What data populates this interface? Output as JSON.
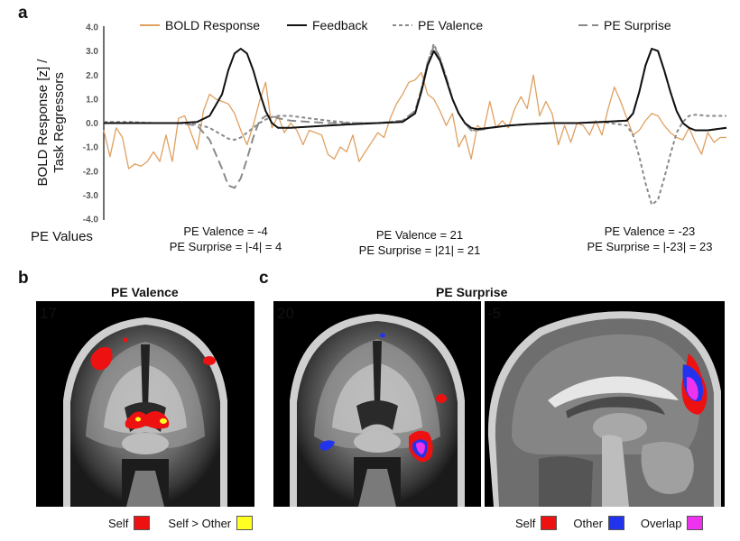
{
  "panel_a": {
    "letter": "a",
    "ylabel_line1": "BOLD Response [z] /",
    "ylabel_line2": "Task Regressors",
    "pe_values_label": "PE Values",
    "annotations": [
      {
        "line1": "PE Valence = -4",
        "line2": "PE Surprise = |-4| = 4"
      },
      {
        "line1": "PE Valence = 21",
        "line2": "PE Surprise = |21| = 21"
      },
      {
        "line1": "PE Valence = -23",
        "line2": "PE Surprise = |-23| = 23"
      }
    ]
  },
  "chart_data": {
    "type": "line",
    "title": "",
    "xlabel": "",
    "ylabel": "BOLD Response [z] / Task Regressors",
    "ylim": [
      -4.0,
      4.0
    ],
    "yticks": [
      "4.0",
      "3.0",
      "2.0",
      "1.0",
      "0.0",
      "-1.0",
      "-2.0",
      "-3.0",
      "-4.0"
    ],
    "grid": false,
    "legend_position": "top",
    "xlim": [
      0,
      100
    ],
    "series": [
      {
        "name": "BOLD Response",
        "color": "#e0a060",
        "style": "solid",
        "x": [
          0,
          1,
          2,
          3,
          4,
          5,
          6,
          7,
          8,
          9,
          10,
          11,
          12,
          13,
          14,
          15,
          16,
          17,
          18,
          19,
          20,
          21,
          22,
          23,
          24,
          25,
          26,
          27,
          28,
          29,
          30,
          31,
          32,
          33,
          34,
          35,
          36,
          37,
          38,
          39,
          40,
          41,
          42,
          43,
          44,
          45,
          46,
          47,
          48,
          49,
          50,
          51,
          52,
          53,
          54,
          55,
          56,
          57,
          58,
          59,
          60,
          61,
          62,
          63,
          64,
          65,
          66,
          67,
          68,
          69,
          70,
          71,
          72,
          73,
          74,
          75,
          76,
          77,
          78,
          79,
          80,
          81,
          82,
          83,
          84,
          85,
          86,
          87,
          88,
          89,
          90,
          91,
          92,
          93,
          94,
          95,
          96,
          97,
          98,
          99,
          100
        ],
        "y": [
          -0.3,
          -1.4,
          -0.2,
          -0.6,
          -1.9,
          -1.7,
          -1.8,
          -1.6,
          -1.2,
          -1.6,
          -0.5,
          -1.6,
          0.2,
          0.3,
          -0.4,
          -1.1,
          0.5,
          1.2,
          1.0,
          0.9,
          0.8,
          0.4,
          -0.3,
          -0.9,
          -0.1,
          0.9,
          1.7,
          -0.2,
          0.3,
          -0.4,
          0.0,
          -0.3,
          -0.9,
          -0.3,
          -0.4,
          -0.5,
          -1.3,
          -1.5,
          -1.0,
          -1.2,
          -0.5,
          -1.6,
          -1.2,
          -0.8,
          -0.4,
          -0.6,
          0.2,
          0.8,
          1.2,
          1.7,
          1.8,
          2.1,
          1.2,
          1.0,
          0.5,
          -0.1,
          0.4,
          -1.0,
          -0.5,
          -1.5,
          -0.1,
          -0.3,
          0.9,
          -0.2,
          0.1,
          -0.2,
          0.6,
          1.1,
          0.6,
          2.0,
          0.3,
          0.9,
          0.4,
          -0.9,
          -0.1,
          -0.8,
          0.0,
          -0.1,
          -0.5,
          0.1,
          -0.5,
          0.6,
          1.5,
          0.9,
          0.2,
          -0.5,
          -0.3,
          0.1,
          0.4,
          0.3,
          -0.1,
          -0.4,
          -0.6,
          -0.7,
          -0.2,
          -0.8,
          -1.3,
          -0.4,
          -0.8,
          -0.6,
          -0.6
        ]
      },
      {
        "name": "Feedback",
        "color": "#111111",
        "style": "solid",
        "x": [
          0,
          4,
          8,
          12,
          15,
          17,
          19,
          20,
          21,
          22,
          23,
          24,
          25,
          26,
          27,
          28,
          30,
          33,
          36,
          40,
          44,
          48,
          50,
          51,
          52,
          53,
          54,
          55,
          56,
          57,
          58,
          59,
          60,
          62,
          65,
          68,
          72,
          76,
          80,
          84,
          85,
          86,
          87,
          88,
          89,
          90,
          91,
          92,
          93,
          94,
          95,
          97,
          100
        ],
        "y": [
          0.0,
          0.0,
          0.0,
          0.0,
          0.05,
          0.3,
          1.2,
          2.2,
          2.9,
          3.1,
          2.9,
          2.2,
          1.3,
          0.5,
          0.0,
          -0.2,
          -0.2,
          -0.15,
          -0.1,
          -0.05,
          0.0,
          0.05,
          0.4,
          1.3,
          2.4,
          3.0,
          2.6,
          1.8,
          1.0,
          0.4,
          0.0,
          -0.2,
          -0.25,
          -0.2,
          -0.1,
          -0.05,
          0.0,
          0.0,
          0.05,
          0.1,
          0.4,
          1.3,
          2.4,
          3.1,
          3.0,
          2.2,
          1.3,
          0.5,
          0.0,
          -0.2,
          -0.3,
          -0.3,
          -0.2
        ]
      },
      {
        "name": "PE Valence",
        "color": "#8a8a8a",
        "style": "short-dash",
        "x": [
          0,
          4,
          8,
          12,
          15,
          17,
          19,
          20,
          21,
          22,
          23,
          24,
          25,
          26,
          27,
          28,
          30,
          33,
          36,
          40,
          44,
          48,
          50,
          51,
          52,
          53,
          54,
          55,
          56,
          57,
          58,
          59,
          60,
          62,
          65,
          68,
          72,
          76,
          80,
          84,
          85,
          86,
          87,
          88,
          89,
          90,
          91,
          92,
          93,
          94,
          95,
          97,
          100
        ],
        "y": [
          0.05,
          0.05,
          0.0,
          0.0,
          -0.05,
          -0.2,
          -0.5,
          -0.65,
          -0.7,
          -0.6,
          -0.4,
          -0.2,
          0.0,
          0.15,
          0.25,
          0.3,
          0.3,
          0.2,
          0.1,
          0.0,
          0.0,
          0.1,
          0.5,
          1.4,
          2.5,
          3.3,
          2.7,
          1.9,
          1.0,
          0.4,
          0.0,
          -0.3,
          -0.3,
          -0.2,
          -0.1,
          -0.05,
          0.0,
          0.0,
          0.05,
          -0.1,
          -0.5,
          -1.4,
          -2.5,
          -3.4,
          -3.2,
          -2.3,
          -1.3,
          -0.4,
          0.05,
          0.3,
          0.35,
          0.3,
          0.3
        ]
      },
      {
        "name": "PE Surprise",
        "color": "#8a8a8a",
        "style": "long-dash",
        "x": [
          0,
          4,
          8,
          12,
          15,
          17,
          19,
          20,
          21,
          22,
          23,
          24,
          25,
          26,
          27,
          28,
          30,
          33,
          36,
          40,
          44,
          48,
          50,
          51,
          52,
          53,
          54,
          55,
          56,
          57,
          58,
          59,
          60,
          62,
          65,
          68,
          72,
          76,
          80,
          84,
          85,
          86,
          87,
          88,
          89,
          90,
          91,
          92,
          93,
          94,
          95,
          97,
          100
        ],
        "y": [
          0.0,
          0.0,
          0.0,
          0.0,
          -0.1,
          -0.7,
          -1.9,
          -2.6,
          -2.7,
          -2.3,
          -1.5,
          -0.6,
          0.1,
          0.3,
          0.3,
          0.2,
          0.1,
          0.05,
          0.0,
          0.0,
          0.0,
          0.1,
          0.5,
          1.4,
          2.5,
          3.2,
          2.7,
          1.9,
          1.0,
          0.4,
          0.0,
          -0.3,
          -0.3,
          -0.2,
          -0.1,
          -0.05,
          0.0,
          0.0,
          0.05,
          0.1,
          0.4,
          1.3,
          2.4,
          3.1,
          3.0,
          2.2,
          1.3,
          0.5,
          0.0,
          -0.2,
          -0.3,
          -0.3,
          -0.2
        ]
      }
    ]
  },
  "panel_b": {
    "letter": "b",
    "title": "PE Valence",
    "slice": "17",
    "legend": [
      {
        "label": "Self",
        "color": "#ee1111"
      },
      {
        "label": "Self > Other",
        "color": "#ffff22"
      }
    ]
  },
  "panel_c": {
    "letter": "c",
    "title": "PE Surprise",
    "slice_coronal": "20",
    "slice_sagittal": "-5",
    "legend": [
      {
        "label": "Self",
        "color": "#ee1111"
      },
      {
        "label": "Other",
        "color": "#2233ee"
      },
      {
        "label": "Overlap",
        "color": "#ee33ee"
      }
    ]
  }
}
